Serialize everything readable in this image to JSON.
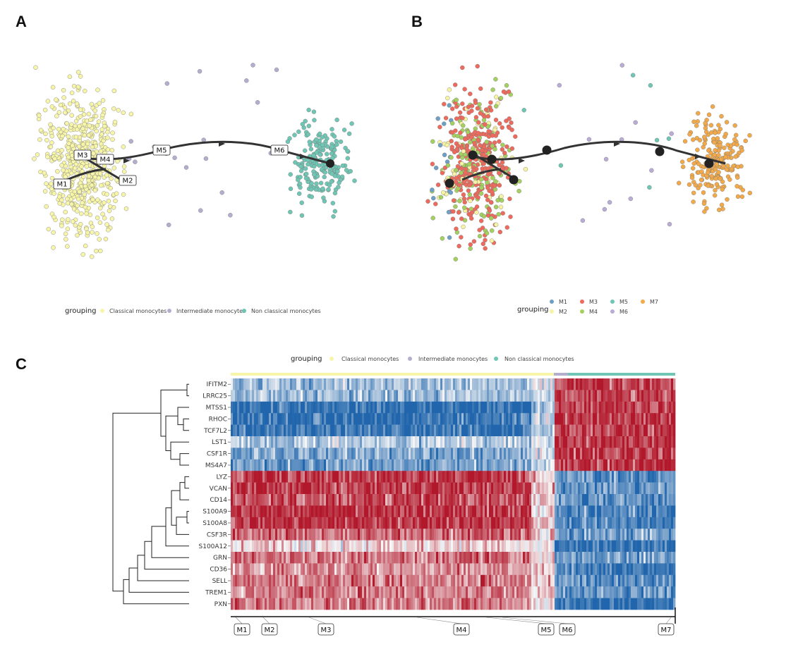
{
  "panels": {
    "a": "A",
    "b": "B",
    "c": "C"
  },
  "colors": {
    "classical": "#f7f5a8",
    "intermediate": "#b3aed0",
    "nonclassical": "#6fc6b4",
    "M1": "#6e9fc6",
    "M2": "#f6f3a2",
    "M3": "#ee6a5c",
    "M4": "#a4d05f",
    "M5": "#6fc6b4",
    "M6": "#b9acd6",
    "M7": "#f2a94a",
    "high": "#b2182b",
    "low": "#2166ac",
    "mid": "#f7f7f7"
  },
  "chart_data": [
    {
      "type": "scatter",
      "panel": "A",
      "legend_title": "grouping",
      "legend_position": "bottom",
      "legend": [
        "Classical monocytes",
        "Intermediate monocytes",
        "Non classical monocytes"
      ],
      "milestones": [
        "M1",
        "M2",
        "M3",
        "M4",
        "M5",
        "M6"
      ],
      "grid": false
    },
    {
      "type": "scatter",
      "panel": "B",
      "legend_title": "grouping",
      "legend_position": "bottom",
      "legend": [
        "M1",
        "M2",
        "M3",
        "M4",
        "M5",
        "M6",
        "M7"
      ],
      "grid": false
    },
    {
      "type": "heatmap",
      "panel": "C",
      "legend_title": "grouping",
      "legend": [
        "Classical monocytes",
        "Intermediate monocytes",
        "Non classical monocytes"
      ],
      "genes": [
        "IFITM2",
        "LRRC25",
        "MTSS1",
        "RHOC",
        "TCF7L2",
        "LST1",
        "CSF1R",
        "MS4A7",
        "LYZ",
        "VCAN",
        "CD14",
        "S100A9",
        "S100A8",
        "CSF3R",
        "S100A12",
        "GRN",
        "CD36",
        "SELL",
        "TREM1",
        "PXN"
      ],
      "milestones": [
        "M1",
        "M2",
        "M3",
        "M4",
        "M5",
        "M6",
        "M7"
      ]
    }
  ]
}
